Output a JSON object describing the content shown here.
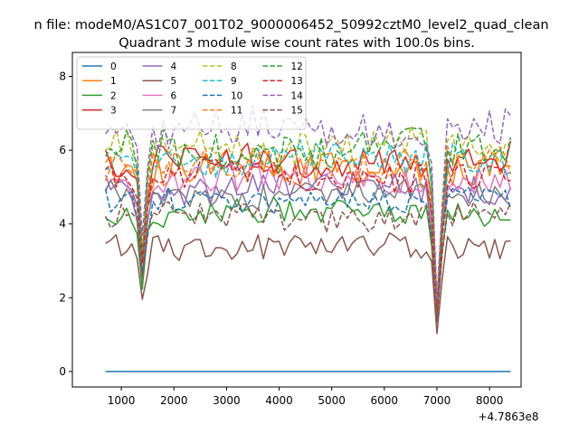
{
  "chart_data": {
    "type": "line",
    "suptitle": "n file: modeM0/AS1C07_001T02_9000006452_50992cztM0_level2_quad_clean",
    "title": "Quadrant 3 module wise count rates with 100.0s bins.",
    "xlabel": "",
    "ylabel": "",
    "x_offset_label": "+4.7863e8",
    "xlim": [
      70,
      8600
    ],
    "ylim": [
      -0.42,
      8.65
    ],
    "x_ticks": [
      1000,
      2000,
      3000,
      4000,
      5000,
      6000,
      7000,
      8000
    ],
    "y_ticks": [
      0,
      2,
      4,
      6,
      8
    ],
    "x_range": [
      700,
      8400
    ],
    "x_step": 100,
    "grid": false,
    "legend_position": "upper-left",
    "legend_columns": 4,
    "series": [
      {
        "name": "0",
        "color": "#1f77b4",
        "dash": "solid",
        "mean": 0.0,
        "amp": 0.0,
        "seed": 0
      },
      {
        "name": "1",
        "color": "#ff7f0e",
        "dash": "solid",
        "mean": 5.5,
        "amp": 0.45,
        "seed": 11
      },
      {
        "name": "2",
        "color": "#2ca02c",
        "dash": "solid",
        "mean": 4.3,
        "amp": 0.35,
        "seed": 23
      },
      {
        "name": "3",
        "color": "#d62728",
        "dash": "solid",
        "mean": 5.7,
        "amp": 0.45,
        "seed": 37
      },
      {
        "name": "4",
        "color": "#9467bd",
        "dash": "solid",
        "mean": 5.0,
        "amp": 0.4,
        "seed": 41
      },
      {
        "name": "5",
        "color": "#8c564b",
        "dash": "solid",
        "mean": 3.4,
        "amp": 0.35,
        "seed": 53
      },
      {
        "name": "6",
        "color": "#e377c2",
        "dash": "solid",
        "mean": 5.2,
        "amp": 0.4,
        "seed": 67
      },
      {
        "name": "7",
        "color": "#7f7f7f",
        "dash": "solid",
        "mean": 4.8,
        "amp": 0.35,
        "seed": 71
      },
      {
        "name": "8",
        "color": "#bcbd22",
        "dash": "dashed",
        "mean": 6.1,
        "amp": 0.45,
        "seed": 83
      },
      {
        "name": "9",
        "color": "#17becf",
        "dash": "dashed",
        "mean": 5.8,
        "amp": 0.45,
        "seed": 97
      },
      {
        "name": "10",
        "color": "#1f77b4",
        "dash": "dashed",
        "mean": 4.6,
        "amp": 0.35,
        "seed": 101
      },
      {
        "name": "11",
        "color": "#ff7f0e",
        "dash": "dashed",
        "mean": 5.6,
        "amp": 0.45,
        "seed": 113
      },
      {
        "name": "12",
        "color": "#2ca02c",
        "dash": "dashed",
        "mean": 6.0,
        "amp": 0.5,
        "seed": 127
      },
      {
        "name": "13",
        "color": "#d62728",
        "dash": "dashed",
        "mean": 5.3,
        "amp": 0.4,
        "seed": 131
      },
      {
        "name": "14",
        "color": "#9467bd",
        "dash": "dashed",
        "mean": 6.6,
        "amp": 0.55,
        "seed": 149
      },
      {
        "name": "15",
        "color": "#8c564b",
        "dash": "dashed",
        "mean": 4.2,
        "amp": 0.35,
        "seed": 157
      }
    ],
    "dips": [
      {
        "x": 1400,
        "factor": 0.55
      },
      {
        "x": 7000,
        "factor": 0.3
      }
    ]
  }
}
